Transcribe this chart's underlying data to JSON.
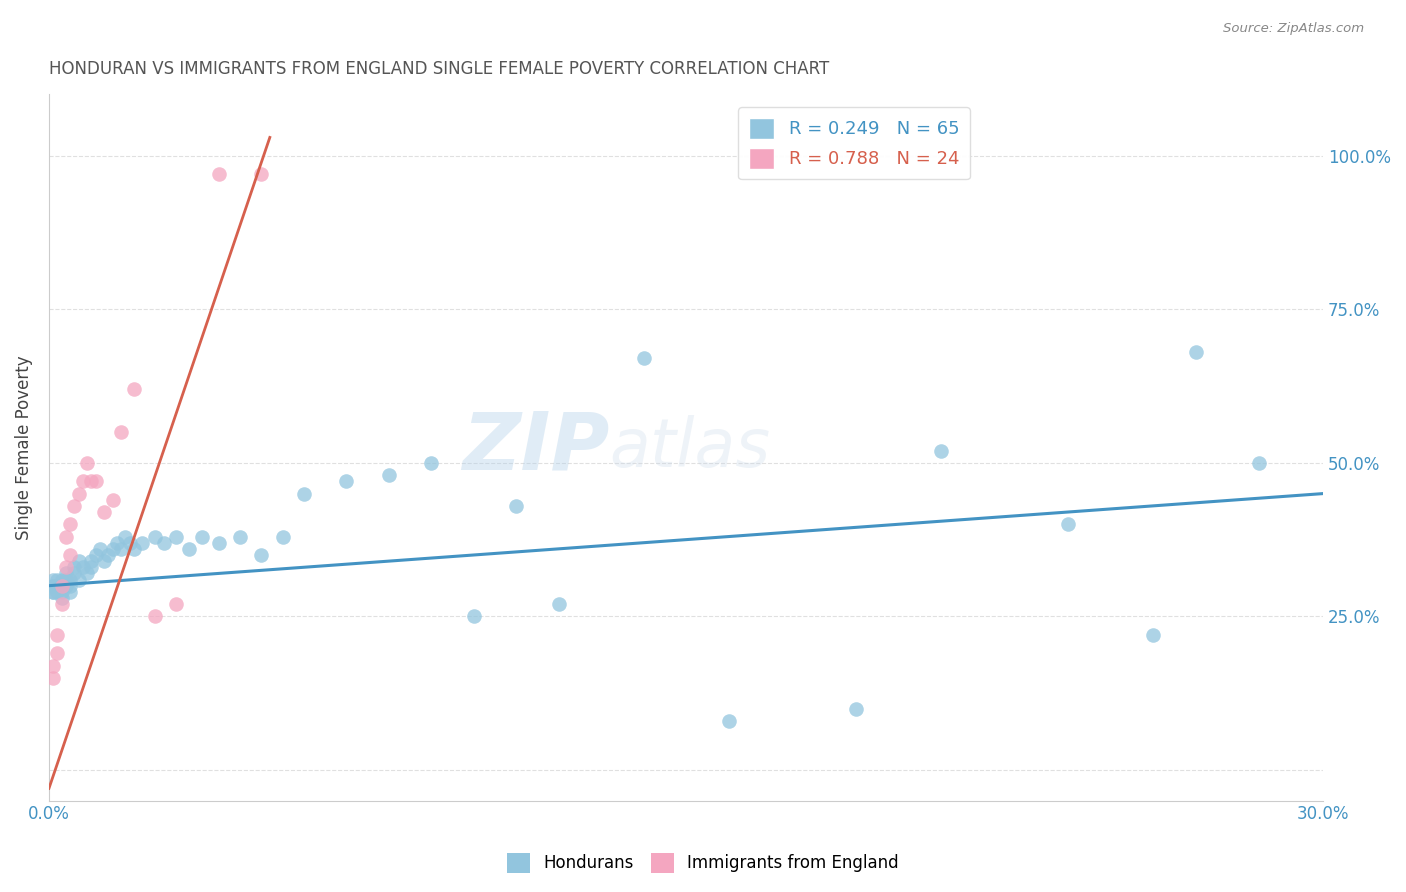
{
  "title": "HONDURAN VS IMMIGRANTS FROM ENGLAND SINGLE FEMALE POVERTY CORRELATION CHART",
  "source": "Source: ZipAtlas.com",
  "ylabel": "Single Female Poverty",
  "xlim": [
    0.0,
    0.3
  ],
  "ylim": [
    -0.05,
    1.1
  ],
  "yticks": [
    0.0,
    0.25,
    0.5,
    0.75,
    1.0
  ],
  "ytick_labels": [
    "",
    "25.0%",
    "50.0%",
    "75.0%",
    "100.0%"
  ],
  "xticks": [
    0.0,
    0.05,
    0.1,
    0.15,
    0.2,
    0.25,
    0.3
  ],
  "xtick_labels": [
    "0.0%",
    "",
    "",
    "",
    "",
    "",
    "30.0%"
  ],
  "watermark_zip": "ZIP",
  "watermark_atlas": "atlas",
  "legend_r1": "R = 0.249",
  "legend_n1": "N = 65",
  "legend_r2": "R = 0.788",
  "legend_n2": "N = 24",
  "blue_color": "#92c5de",
  "pink_color": "#f4a6c0",
  "blue_line_color": "#4393c3",
  "pink_line_color": "#d6604d",
  "title_color": "#555555",
  "source_color": "#888888",
  "axis_color": "#cccccc",
  "grid_color": "#e0e0e0",
  "hondurans_x": [
    0.001,
    0.001,
    0.001,
    0.001,
    0.001,
    0.002,
    0.002,
    0.002,
    0.002,
    0.002,
    0.002,
    0.003,
    0.003,
    0.003,
    0.003,
    0.003,
    0.004,
    0.004,
    0.004,
    0.005,
    0.005,
    0.005,
    0.006,
    0.006,
    0.007,
    0.007,
    0.008,
    0.009,
    0.01,
    0.01,
    0.011,
    0.012,
    0.013,
    0.014,
    0.015,
    0.016,
    0.017,
    0.018,
    0.019,
    0.02,
    0.022,
    0.025,
    0.027,
    0.03,
    0.033,
    0.036,
    0.04,
    0.045,
    0.05,
    0.055,
    0.06,
    0.07,
    0.08,
    0.09,
    0.1,
    0.11,
    0.12,
    0.14,
    0.16,
    0.19,
    0.21,
    0.24,
    0.26,
    0.27,
    0.285
  ],
  "hondurans_y": [
    0.3,
    0.29,
    0.3,
    0.31,
    0.29,
    0.3,
    0.31,
    0.3,
    0.29,
    0.3,
    0.3,
    0.3,
    0.31,
    0.3,
    0.29,
    0.28,
    0.31,
    0.3,
    0.32,
    0.3,
    0.31,
    0.29,
    0.32,
    0.33,
    0.31,
    0.34,
    0.33,
    0.32,
    0.33,
    0.34,
    0.35,
    0.36,
    0.34,
    0.35,
    0.36,
    0.37,
    0.36,
    0.38,
    0.37,
    0.36,
    0.37,
    0.38,
    0.37,
    0.38,
    0.36,
    0.38,
    0.37,
    0.38,
    0.35,
    0.38,
    0.45,
    0.47,
    0.48,
    0.5,
    0.25,
    0.43,
    0.27,
    0.67,
    0.08,
    0.1,
    0.52,
    0.4,
    0.22,
    0.68,
    0.5
  ],
  "england_x": [
    0.001,
    0.001,
    0.002,
    0.002,
    0.003,
    0.003,
    0.004,
    0.004,
    0.005,
    0.005,
    0.006,
    0.007,
    0.008,
    0.009,
    0.01,
    0.011,
    0.013,
    0.015,
    0.017,
    0.02,
    0.025,
    0.03,
    0.04,
    0.05
  ],
  "england_y": [
    0.15,
    0.17,
    0.19,
    0.22,
    0.27,
    0.3,
    0.33,
    0.38,
    0.35,
    0.4,
    0.43,
    0.45,
    0.47,
    0.5,
    0.47,
    0.47,
    0.42,
    0.44,
    0.55,
    0.62,
    0.25,
    0.27,
    0.97,
    0.97
  ],
  "blue_line_x0": 0.0,
  "blue_line_y0": 0.3,
  "blue_line_x1": 0.3,
  "blue_line_y1": 0.45,
  "pink_line_x0": 0.0,
  "pink_line_y0": -0.03,
  "pink_line_x1": 0.052,
  "pink_line_y1": 1.03
}
